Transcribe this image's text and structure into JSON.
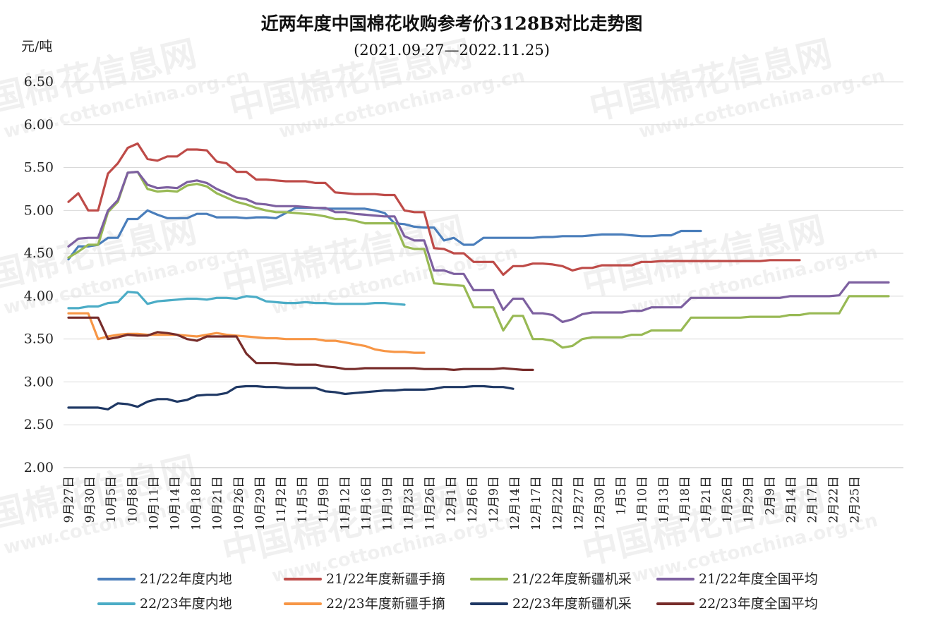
{
  "chart_data": {
    "type": "line",
    "title": "近两年度中国棉花收购参考价3128B对比走势图",
    "subtitle": "(2021.09.27—2022.11.25)",
    "ylabel": "元/吨",
    "ylim": [
      2.0,
      6.5
    ],
    "yticks": [
      "2.00",
      "2.50",
      "3.00",
      "3.50",
      "4.00",
      "4.50",
      "5.00",
      "5.50",
      "6.00",
      "6.50"
    ],
    "grid": true,
    "legend_position": "bottom",
    "watermark": "中国棉花信息网 www.cottonchina.org.cn",
    "x_labels": [
      "9月27日",
      "9月30日",
      "10月5日",
      "10月8日",
      "10月11日",
      "10月14日",
      "10月18日",
      "10月21日",
      "10月26日",
      "10月29日",
      "11月2日",
      "11月5日",
      "11月9日",
      "11月12日",
      "11月16日",
      "11月19日",
      "11月23日",
      "11月26日",
      "12月1日",
      "12月6日",
      "12月9日",
      "12月14日",
      "12月17日",
      "12月22日",
      "12月27日",
      "12月30日",
      "1月5日",
      "1月10日",
      "1月13日",
      "1月18日",
      "1月21日",
      "1月26日",
      "1月29日",
      "2月9日",
      "2月14日",
      "2月17日",
      "2月22日",
      "2月25日"
    ],
    "series": [
      {
        "name": "21/22年度内地",
        "color": "#4a7ebb",
        "values": [
          4.43,
          4.58,
          4.58,
          4.6,
          4.68,
          4.68,
          4.9,
          4.9,
          5.0,
          4.95,
          4.91,
          4.91,
          4.91,
          4.96,
          4.96,
          4.92,
          4.92,
          4.92,
          4.91,
          4.92,
          4.92,
          4.91,
          4.97,
          5.03,
          5.03,
          5.03,
          5.02,
          5.02,
          5.02,
          5.02,
          5.02,
          5.0,
          4.97,
          4.85,
          4.84,
          4.81,
          4.8,
          4.8,
          4.65,
          4.68,
          4.6,
          4.6,
          4.68,
          4.68,
          4.68,
          4.68,
          4.68,
          4.68,
          4.69,
          4.69,
          4.7,
          4.7,
          4.7,
          4.71,
          4.72,
          4.72,
          4.72,
          4.71,
          4.7,
          4.7,
          4.71,
          4.71,
          4.76,
          4.76,
          4.76
        ]
      },
      {
        "name": "21/22年度新疆手摘",
        "color": "#be4b48",
        "values": [
          5.1,
          5.2,
          5.0,
          5.0,
          5.43,
          5.55,
          5.73,
          5.78,
          5.6,
          5.58,
          5.63,
          5.63,
          5.71,
          5.71,
          5.7,
          5.57,
          5.55,
          5.45,
          5.45,
          5.36,
          5.36,
          5.35,
          5.34,
          5.34,
          5.34,
          5.32,
          5.32,
          5.21,
          5.2,
          5.19,
          5.19,
          5.19,
          5.18,
          5.18,
          5.0,
          4.98,
          4.98,
          4.56,
          4.55,
          4.5,
          4.5,
          4.4,
          4.4,
          4.4,
          4.25,
          4.35,
          4.35,
          4.38,
          4.38,
          4.37,
          4.35,
          4.3,
          4.33,
          4.33,
          4.36,
          4.36,
          4.36,
          4.36,
          4.4,
          4.4,
          4.41,
          4.41,
          4.41,
          4.41,
          4.41,
          4.41,
          4.41,
          4.41,
          4.41,
          4.41,
          4.41,
          4.42,
          4.42,
          4.42,
          4.42
        ]
      },
      {
        "name": "21/22年度新疆机采",
        "color": "#98b954",
        "values": [
          4.45,
          4.52,
          4.6,
          4.6,
          4.98,
          5.1,
          5.44,
          5.45,
          5.25,
          5.22,
          5.23,
          5.22,
          5.29,
          5.31,
          5.28,
          5.2,
          5.15,
          5.1,
          5.07,
          5.03,
          5.0,
          4.98,
          4.98,
          4.97,
          4.96,
          4.95,
          4.93,
          4.9,
          4.9,
          4.88,
          4.85,
          4.85,
          4.85,
          4.85,
          4.58,
          4.55,
          4.55,
          4.15,
          4.14,
          4.13,
          4.12,
          3.87,
          3.87,
          3.87,
          3.6,
          3.77,
          3.77,
          3.5,
          3.5,
          3.48,
          3.4,
          3.42,
          3.5,
          3.52,
          3.52,
          3.52,
          3.52,
          3.55,
          3.55,
          3.6,
          3.6,
          3.6,
          3.6,
          3.75,
          3.75,
          3.75,
          3.75,
          3.75,
          3.75,
          3.76,
          3.76,
          3.76,
          3.76,
          3.78,
          3.78,
          3.8,
          3.8,
          3.8,
          3.8,
          4.0,
          4.0,
          4.0,
          4.0,
          4.0
        ]
      },
      {
        "name": "21/22年度全国平均",
        "color": "#7d60a0",
        "values": [
          4.58,
          4.67,
          4.68,
          4.68,
          5.0,
          5.12,
          5.44,
          5.45,
          5.3,
          5.26,
          5.27,
          5.26,
          5.33,
          5.35,
          5.32,
          5.25,
          5.2,
          5.15,
          5.13,
          5.08,
          5.07,
          5.05,
          5.05,
          5.05,
          5.04,
          5.03,
          5.03,
          4.98,
          4.98,
          4.96,
          4.95,
          4.94,
          4.93,
          4.93,
          4.7,
          4.65,
          4.65,
          4.3,
          4.3,
          4.26,
          4.26,
          4.07,
          4.07,
          4.07,
          3.84,
          3.97,
          3.97,
          3.8,
          3.8,
          3.78,
          3.7,
          3.73,
          3.79,
          3.81,
          3.81,
          3.81,
          3.81,
          3.83,
          3.83,
          3.87,
          3.87,
          3.87,
          3.87,
          3.98,
          3.98,
          3.98,
          3.98,
          3.98,
          3.98,
          3.98,
          3.98,
          3.98,
          3.98,
          4.0,
          4.0,
          4.0,
          4.0,
          4.0,
          4.01,
          4.16,
          4.16,
          4.16,
          4.16,
          4.16
        ]
      },
      {
        "name": "22/23年度内地",
        "color": "#4bacc6",
        "values": [
          3.86,
          3.86,
          3.88,
          3.88,
          3.92,
          3.93,
          4.05,
          4.04,
          3.91,
          3.94,
          3.95,
          3.96,
          3.97,
          3.97,
          3.96,
          3.98,
          3.98,
          3.97,
          4.0,
          3.99,
          3.94,
          3.93,
          3.92,
          3.92,
          3.93,
          3.92,
          3.92,
          3.91,
          3.91,
          3.91,
          3.91,
          3.92,
          3.92,
          3.91,
          3.9
        ]
      },
      {
        "name": "22/23年度新疆手摘",
        "color": "#f79646",
        "values": [
          3.8,
          3.8,
          3.8,
          3.5,
          3.53,
          3.55,
          3.56,
          3.56,
          3.55,
          3.55,
          3.55,
          3.55,
          3.54,
          3.53,
          3.55,
          3.57,
          3.55,
          3.54,
          3.53,
          3.52,
          3.51,
          3.51,
          3.5,
          3.5,
          3.5,
          3.5,
          3.48,
          3.48,
          3.46,
          3.44,
          3.42,
          3.38,
          3.36,
          3.35,
          3.35,
          3.34,
          3.34
        ]
      },
      {
        "name": "22/23年度新疆机采",
        "color": "#1f3864",
        "values": [
          2.7,
          2.7,
          2.7,
          2.7,
          2.68,
          2.75,
          2.74,
          2.71,
          2.77,
          2.8,
          2.8,
          2.77,
          2.79,
          2.84,
          2.85,
          2.85,
          2.87,
          2.94,
          2.95,
          2.95,
          2.94,
          2.94,
          2.93,
          2.93,
          2.93,
          2.93,
          2.89,
          2.88,
          2.86,
          2.87,
          2.88,
          2.89,
          2.9,
          2.9,
          2.91,
          2.91,
          2.91,
          2.92,
          2.94,
          2.94,
          2.94,
          2.95,
          2.95,
          2.94,
          2.94,
          2.92
        ]
      },
      {
        "name": "22/23年度全国平均",
        "color": "#772c2a",
        "values": [
          3.75,
          3.75,
          3.75,
          3.75,
          3.5,
          3.52,
          3.55,
          3.54,
          3.54,
          3.58,
          3.57,
          3.55,
          3.5,
          3.48,
          3.53,
          3.53,
          3.53,
          3.53,
          3.33,
          3.22,
          3.22,
          3.22,
          3.21,
          3.2,
          3.2,
          3.2,
          3.18,
          3.17,
          3.15,
          3.15,
          3.16,
          3.16,
          3.16,
          3.16,
          3.16,
          3.16,
          3.15,
          3.15,
          3.15,
          3.14,
          3.15,
          3.15,
          3.15,
          3.15,
          3.16,
          3.15,
          3.14,
          3.14
        ]
      }
    ]
  }
}
